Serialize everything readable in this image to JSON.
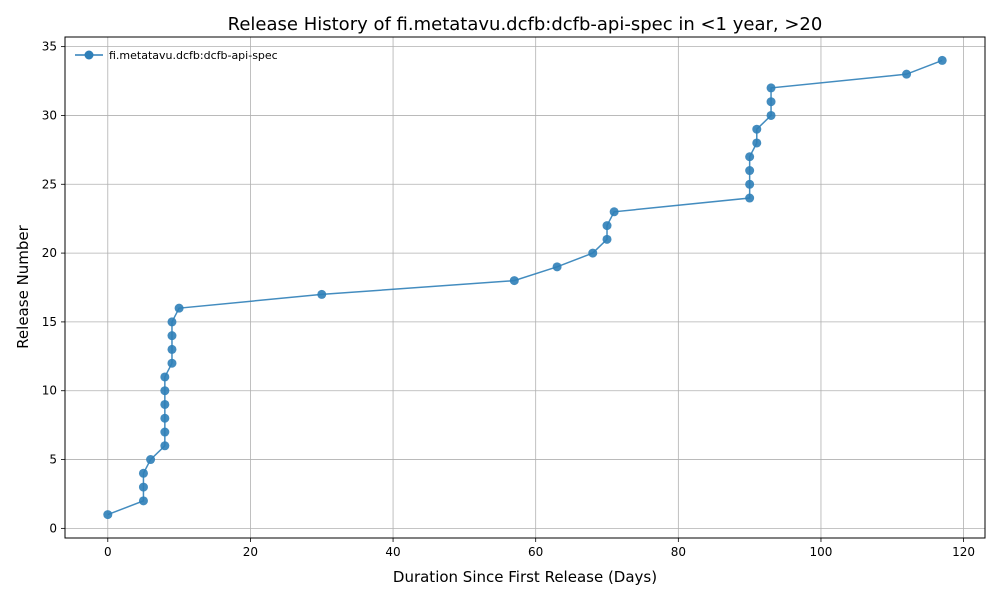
{
  "chart_data": {
    "type": "line",
    "title": "Release History of fi.metatavu.dcfb:dcfb-api-spec in <1 year, >20",
    "xlabel": "Duration Since First Release (Days)",
    "ylabel": "Release Number",
    "xlim": [
      -6,
      123
    ],
    "ylim": [
      -0.7,
      35.7
    ],
    "xticks": [
      0,
      20,
      40,
      60,
      80,
      100,
      120
    ],
    "yticks": [
      0,
      5,
      10,
      15,
      20,
      25,
      30,
      35
    ],
    "grid": true,
    "legend_position": "top-left",
    "series": [
      {
        "name": "fi.metatavu.dcfb:dcfb-api-spec",
        "color": "#2f7fb8",
        "marker": "circle",
        "x": [
          0,
          5,
          5,
          5,
          6,
          8,
          8,
          8,
          8,
          8,
          8,
          9,
          9,
          9,
          9,
          10,
          30,
          57,
          63,
          68,
          70,
          70,
          71,
          90,
          90,
          90,
          90,
          91,
          91,
          93,
          93,
          93,
          112,
          117
        ],
        "y": [
          1,
          2,
          3,
          4,
          5,
          6,
          7,
          8,
          9,
          10,
          11,
          12,
          13,
          14,
          15,
          16,
          17,
          18,
          19,
          20,
          21,
          22,
          23,
          24,
          25,
          26,
          27,
          28,
          29,
          30,
          31,
          32,
          33,
          34
        ]
      }
    ]
  }
}
